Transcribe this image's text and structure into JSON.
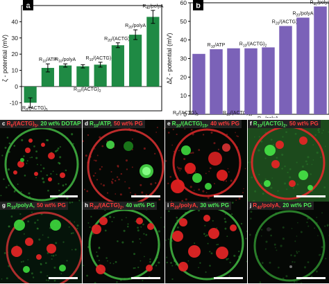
{
  "colors": {
    "green_bar": "#1f8a44",
    "purple_bar": "#7b62b8",
    "red_dye": "#ff3b3b",
    "green_dye": "#4ff05a"
  },
  "panels": {
    "a": {
      "label": "a"
    },
    "b": {
      "label": "b"
    }
  },
  "chart_data": [
    {
      "panel": "a",
      "type": "bar",
      "ylabel": "ζ - potential (mV)",
      "ylim": [
        -15,
        50
      ],
      "yticks": [
        -10,
        0,
        10,
        20,
        30,
        40
      ],
      "grid": false,
      "categories": [
        "R8/(ACTG)5",
        "R10/ATP",
        "R10/polyA",
        "R10/(ACTG)2",
        "R10/(ACTG)15",
        "R20/(ACTG)2",
        "R20/polyA",
        "R40/polyA"
      ],
      "values": [
        -10,
        11.5,
        13,
        12.5,
        13.5,
        25.5,
        32,
        43
      ],
      "errors": [
        3,
        2.5,
        1,
        1,
        1.5,
        1.5,
        3,
        4
      ],
      "annotations": [
        {
          "sym": "R",
          "sub": "8",
          "tail": "/(ACTG)",
          "tsub": "5"
        },
        {
          "sym": "R",
          "sub": "10",
          "tail": "/ATP",
          "tsub": ""
        },
        {
          "sym": "R",
          "sub": "10",
          "tail": "/polyA",
          "tsub": ""
        },
        {
          "sym": "R",
          "sub": "10",
          "tail": "/(ACTG)",
          "tsub": "2"
        },
        {
          "sym": "R",
          "sub": "10",
          "tail": "/(ACTG)",
          "tsub": "15"
        },
        {
          "sym": "R",
          "sub": "20",
          "tail": "/(ACTG)",
          "tsub": "2"
        },
        {
          "sym": "R",
          "sub": "20",
          "tail": "/polyA",
          "tsub": ""
        },
        {
          "sym": "R",
          "sub": "40",
          "tail": "/polyA",
          "tsub": ""
        }
      ]
    },
    {
      "panel": "b",
      "type": "bar",
      "ylabel": "Δζ - potential (mV)",
      "ylim": [
        0,
        60
      ],
      "yticks": [
        0,
        10,
        20,
        30,
        40,
        50,
        60
      ],
      "grid": false,
      "categories": [
        "R8/(ACTG)5",
        "R10/ATP",
        "R10/(ACTG)15",
        "R10/(ACTG)2",
        "R10/polyA",
        "R20/(ACTG)2",
        "R20/polyA",
        "R40/polyA"
      ],
      "values": [
        32.5,
        35,
        35.5,
        35.5,
        36,
        47.5,
        52,
        58
      ],
      "annotations": [
        {
          "sym": "R",
          "sub": "8",
          "tail": "/(ACTG)",
          "tsub": "5"
        },
        {
          "sym": "R",
          "sub": "10",
          "tail": "/ATP",
          "tsub": ""
        },
        {
          "sym": "R",
          "sub": "10",
          "tail": "/(ACTG)",
          "tsub": "15"
        },
        {
          "sym": "R",
          "sub": "10",
          "tail": "/(ACTG)",
          "tsub": "2"
        },
        {
          "sym": "R",
          "sub": "10",
          "tail": "/polyA",
          "tsub": ""
        },
        {
          "sym": "R",
          "sub": "20",
          "tail": "/(ACTG)",
          "tsub": "2"
        },
        {
          "sym": "R",
          "sub": "20",
          "tail": "/polyA",
          "tsub": ""
        },
        {
          "sym": "R",
          "sub": "40",
          "tail": "/polyA",
          "tsub": ""
        }
      ]
    }
  ],
  "micrographs": [
    {
      "panel": "c",
      "sym": "R",
      "sub": "8",
      "tail": "/(ACTG)",
      "tsub": "5",
      "cond": "20 wt% DOTAP",
      "cond_color": "green"
    },
    {
      "panel": "d",
      "sym": "R",
      "sub": "10",
      "tail": "/ATP",
      "tsub": "",
      "cond": "50 wt% PG",
      "mol_color": "green",
      "cond_color": "red"
    },
    {
      "panel": "e",
      "sym": "R",
      "sub": "10",
      "tail": "/(ACTG)",
      "tsub": "15",
      "cond": "40 wt% PG",
      "mol_color": "green",
      "cond_color": "red"
    },
    {
      "panel": "f",
      "sym": "R",
      "sub": "10",
      "tail": "/(ACTG)",
      "tsub": "2",
      "cond": "50 wt% PG",
      "mol_color": "green",
      "cond_color": "red"
    },
    {
      "panel": "g",
      "sym": "R",
      "sub": "10",
      "tail": "/polyA",
      "tsub": "",
      "cond": "50 wt% PG",
      "mol_color": "green",
      "cond_color": "red"
    },
    {
      "panel": "h",
      "sym": "R",
      "sub": "20",
      "tail": "/(ACTG)",
      "tsub": "2",
      "cond": "40 wt% PG",
      "cond_color": "green"
    },
    {
      "panel": "i",
      "sym": "R",
      "sub": "20",
      "tail": "/polyA",
      "tsub": "",
      "cond": "30 wt% PG",
      "cond_color": "green"
    },
    {
      "panel": "j",
      "sym": "R",
      "sub": "40",
      "tail": "/polyA",
      "tsub": "",
      "cond": "20 wt% PG",
      "cond_color": "green"
    }
  ]
}
